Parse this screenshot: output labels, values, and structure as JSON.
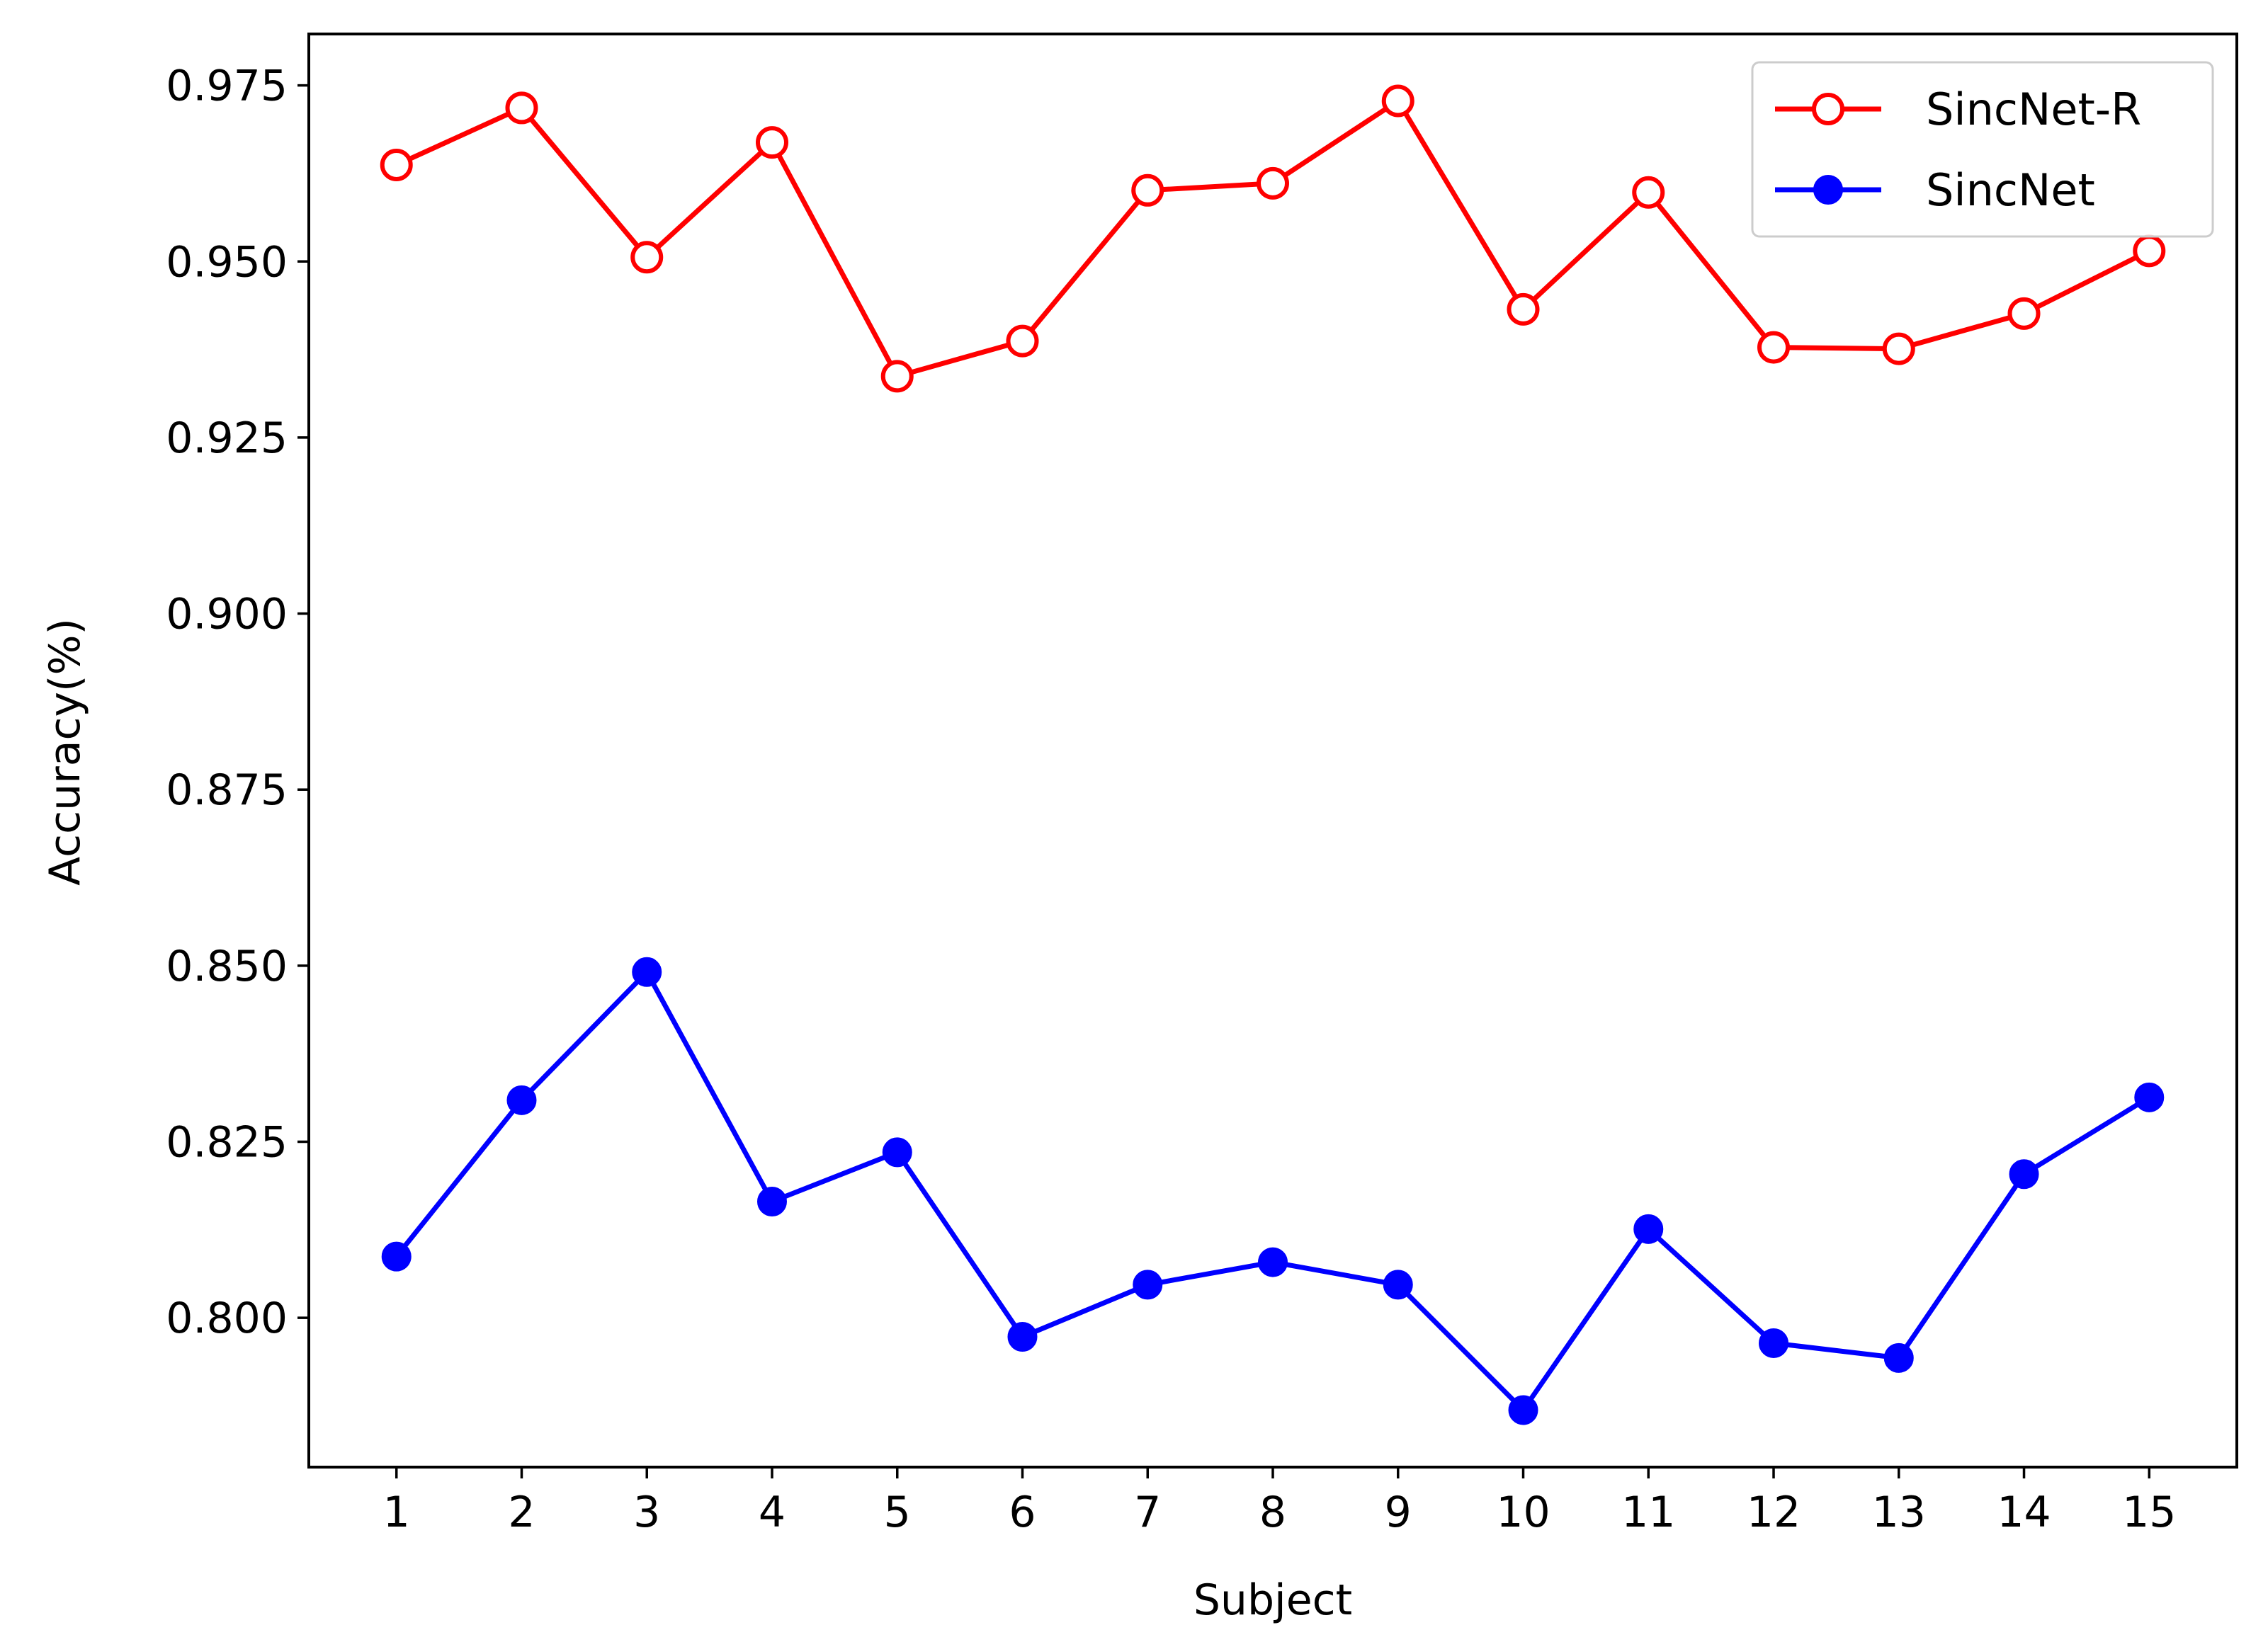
{
  "chart_data": {
    "type": "line",
    "title": "",
    "xlabel": "Subject",
    "ylabel": "Accuracy(%)",
    "x": [
      1,
      2,
      3,
      4,
      5,
      6,
      7,
      8,
      9,
      10,
      11,
      12,
      13,
      14,
      15
    ],
    "x_tick_labels": [
      "1",
      "2",
      "3",
      "4",
      "5",
      "6",
      "7",
      "8",
      "9",
      "10",
      "11",
      "12",
      "13",
      "14",
      "15"
    ],
    "xlim": [
      0.3,
      15.7
    ],
    "ylim": [
      0.7788,
      0.9823
    ],
    "y_ticks": [
      0.8,
      0.825,
      0.85,
      0.875,
      0.9,
      0.925,
      0.95,
      0.975
    ],
    "y_tick_labels": [
      "0.800",
      "0.825",
      "0.850",
      "0.875",
      "0.900",
      "0.925",
      "0.950",
      "0.975"
    ],
    "grid": false,
    "legend_position": "top-right",
    "series": [
      {
        "name": "SincNet-R",
        "color": "#ff0000",
        "marker": "open-circle",
        "values": [
          0.9637,
          0.9718,
          0.9506,
          0.9669,
          0.9337,
          0.9387,
          0.9601,
          0.9611,
          0.9728,
          0.9432,
          0.9598,
          0.9378,
          0.9376,
          0.9426,
          0.9515
        ]
      },
      {
        "name": "SincNet",
        "color": "#0000ff",
        "marker": "filled-circle",
        "values": [
          0.8087,
          0.8309,
          0.8491,
          0.8165,
          0.8235,
          0.7973,
          0.8047,
          0.8079,
          0.8047,
          0.7869,
          0.8126,
          0.7964,
          0.7943,
          0.8204,
          0.8313
        ]
      }
    ]
  }
}
